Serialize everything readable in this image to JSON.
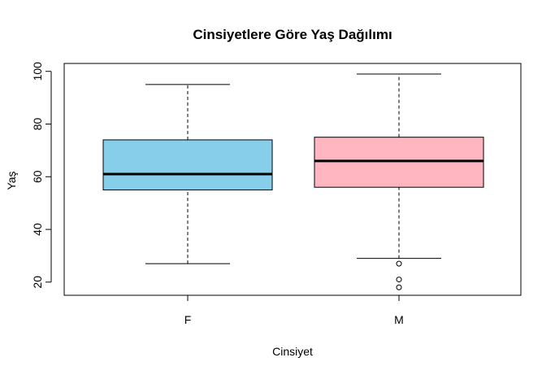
{
  "chart_data": {
    "type": "boxplot",
    "title": "Cinsiyetlere Göre Yaş Dağılımı",
    "xlabel": "Cinsiyet",
    "ylabel": "Yaş",
    "ylim": [
      15,
      103
    ],
    "yticks": [
      20,
      40,
      60,
      80,
      100
    ],
    "grid": false,
    "legend": "none",
    "categories": [
      "F",
      "M"
    ],
    "boxes": [
      {
        "category": "F",
        "whisker_low": 27,
        "q1": 55,
        "median": 61,
        "q3": 74,
        "whisker_high": 95,
        "outliers": [],
        "color": "#87CEEB"
      },
      {
        "category": "M",
        "whisker_low": 29,
        "q1": 56,
        "median": 66,
        "q3": 75,
        "whisker_high": 99,
        "outliers": [
          27,
          21,
          18
        ],
        "color": "#FFB6C1"
      }
    ]
  }
}
